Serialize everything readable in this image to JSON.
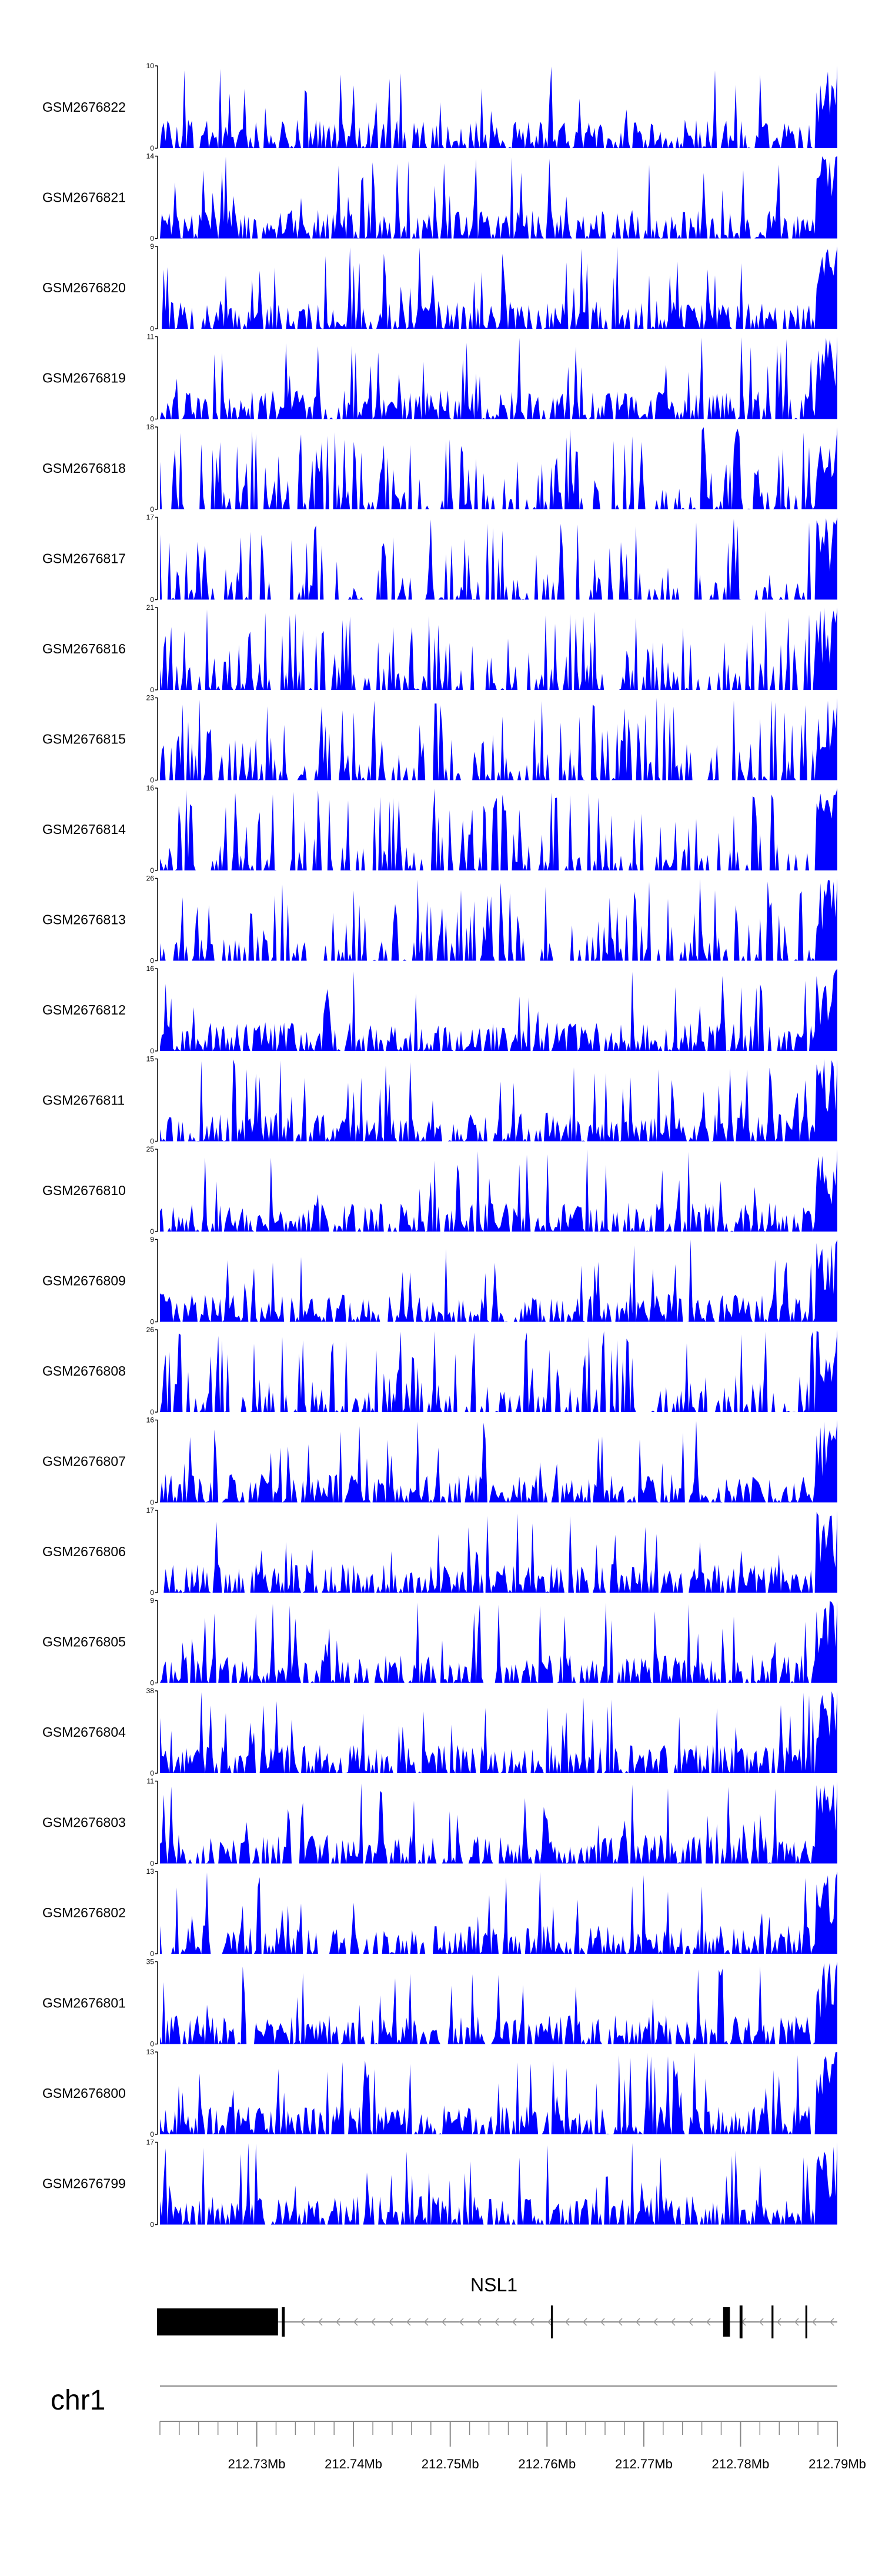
{
  "chart_data": {
    "type": "area",
    "title": "",
    "series_color": "#0000ff",
    "region": {
      "chromosome": "chr1",
      "start": 212720000,
      "end": 212790000
    },
    "tracks": [
      {
        "name": "GSM2676822",
        "ymax": 10,
        "ymin": 0
      },
      {
        "name": "GSM2676821",
        "ymax": 14,
        "ymin": 0
      },
      {
        "name": "GSM2676820",
        "ymax": 9,
        "ymin": 0
      },
      {
        "name": "GSM2676819",
        "ymax": 11,
        "ymin": 0
      },
      {
        "name": "GSM2676818",
        "ymax": 18,
        "ymin": 0
      },
      {
        "name": "GSM2676817",
        "ymax": 17,
        "ymin": 0
      },
      {
        "name": "GSM2676816",
        "ymax": 21,
        "ymin": 0
      },
      {
        "name": "GSM2676815",
        "ymax": 23,
        "ymin": 0
      },
      {
        "name": "GSM2676814",
        "ymax": 16,
        "ymin": 0
      },
      {
        "name": "GSM2676813",
        "ymax": 26,
        "ymin": 0
      },
      {
        "name": "GSM2676812",
        "ymax": 16,
        "ymin": 0
      },
      {
        "name": "GSM2676811",
        "ymax": 15,
        "ymin": 0
      },
      {
        "name": "GSM2676810",
        "ymax": 25,
        "ymin": 0
      },
      {
        "name": "GSM2676809",
        "ymax": 9,
        "ymin": 0
      },
      {
        "name": "GSM2676808",
        "ymax": 26,
        "ymin": 0
      },
      {
        "name": "GSM2676807",
        "ymax": 16,
        "ymin": 0
      },
      {
        "name": "GSM2676806",
        "ymax": 17,
        "ymin": 0
      },
      {
        "name": "GSM2676805",
        "ymax": 9,
        "ymin": 0
      },
      {
        "name": "GSM2676804",
        "ymax": 38,
        "ymin": 0
      },
      {
        "name": "GSM2676803",
        "ymax": 11,
        "ymin": 0
      },
      {
        "name": "GSM2676802",
        "ymax": 13,
        "ymin": 0
      },
      {
        "name": "GSM2676801",
        "ymax": 35,
        "ymin": 0
      },
      {
        "name": "GSM2676800",
        "ymax": 13,
        "ymin": 0
      },
      {
        "name": "GSM2676799",
        "ymax": 17,
        "ymin": 0
      }
    ],
    "gene": {
      "name": "NSL1",
      "strand": "-",
      "exons": [
        {
          "start": 212719700,
          "end": 212732200
        },
        {
          "start": 212732600,
          "end": 212732900
        },
        {
          "start": 212760400,
          "end": 212760600
        },
        {
          "start": 212778200,
          "end": 212778900
        },
        {
          "start": 212779900,
          "end": 212780200
        },
        {
          "start": 212783200,
          "end": 212783400
        },
        {
          "start": 212786700,
          "end": 212786900
        }
      ]
    },
    "chromosome_label": "chr1",
    "x_ticks": [
      {
        "value": 212730000,
        "label": "212.73Mb"
      },
      {
        "value": 212740000,
        "label": "212.74Mb"
      },
      {
        "value": 212750000,
        "label": "212.75Mb"
      },
      {
        "value": 212760000,
        "label": "212.76Mb"
      },
      {
        "value": 212770000,
        "label": "212.77Mb"
      },
      {
        "value": 212780000,
        "label": "212.78Mb"
      },
      {
        "value": 212790000,
        "label": "212.79Mb"
      }
    ],
    "minor_tick_step": 2000
  }
}
